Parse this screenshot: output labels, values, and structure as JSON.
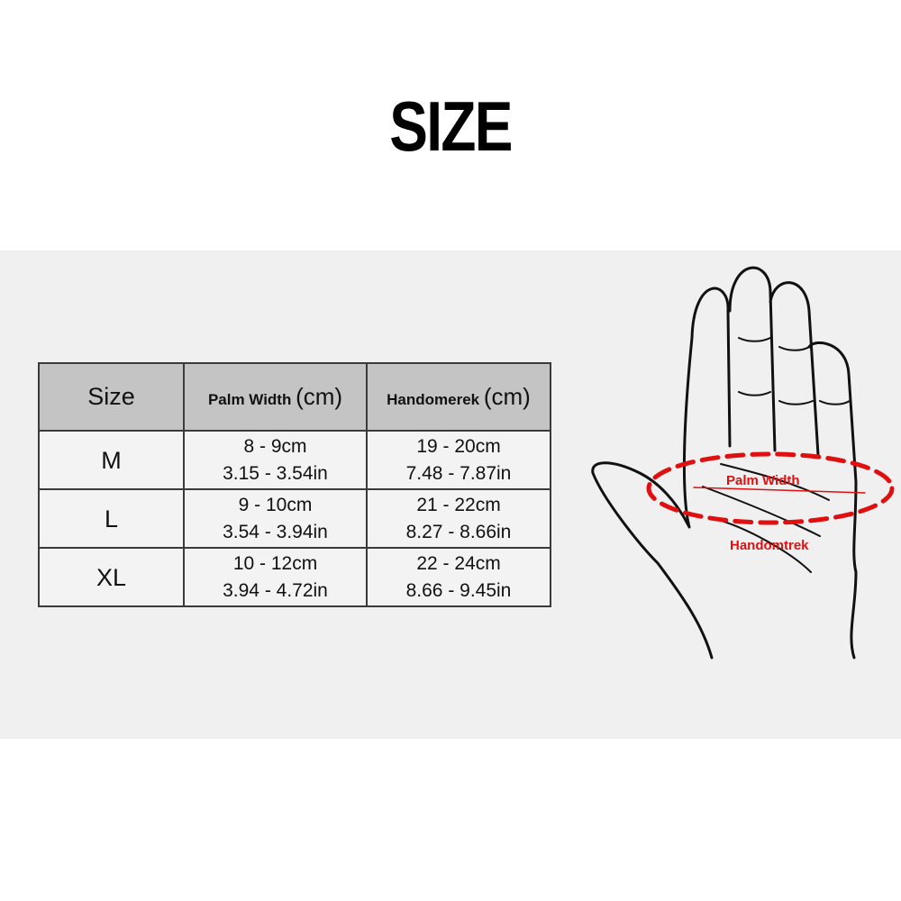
{
  "title": "SIZE",
  "table": {
    "headers": [
      {
        "label": "Size",
        "unit": ""
      },
      {
        "label": "Palm Width",
        "unit": "(cm)"
      },
      {
        "label": "Handomerek",
        "unit": "(cm)"
      }
    ],
    "rows": [
      {
        "size": "M",
        "palm_cm": "8 - 9cm",
        "palm_in": "3.15 - 3.54in",
        "hand_cm": "19 - 20cm",
        "hand_in": "7.48 - 7.87in"
      },
      {
        "size": "L",
        "palm_cm": "9 - 10cm",
        "palm_in": "3.54 - 3.94in",
        "hand_cm": "21 - 22cm",
        "hand_in": "8.27 - 8.66in"
      },
      {
        "size": "XL",
        "palm_cm": "10 - 12cm",
        "palm_in": "3.94 - 4.72in",
        "hand_cm": "22 - 24cm",
        "hand_in": "8.66 - 9.45in"
      }
    ]
  },
  "diagram": {
    "palm_width_label": "Palm Width",
    "hand_label": "Handomtrek",
    "accent": "#e01010"
  }
}
